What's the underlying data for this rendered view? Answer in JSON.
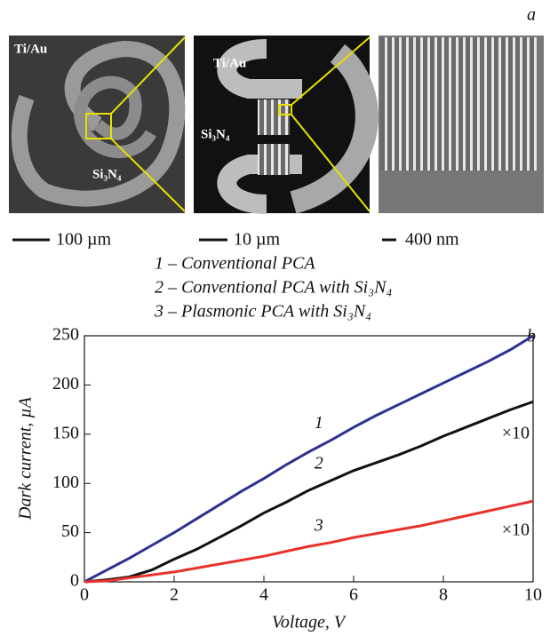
{
  "figure": {
    "panel_a": "a",
    "panel_b": "b",
    "images": [
      {
        "labels": [
          "Ti/Au",
          "Si₃N₄"
        ],
        "scale": "100 µm"
      },
      {
        "labels": [
          "Ti/Au",
          "Si₃N₄"
        ],
        "scale": "10 µm"
      },
      {
        "scale": "400 nm"
      }
    ]
  },
  "chart_data": {
    "type": "line",
    "x_label": "Voltage, V",
    "y_label": "Dark current, µA",
    "x": [
      0,
      0.5,
      1,
      1.5,
      2,
      2.5,
      3,
      3.5,
      4,
      4.5,
      5,
      5.5,
      6,
      6.5,
      7,
      7.5,
      8,
      8.5,
      9,
      9.5,
      10
    ],
    "series": [
      {
        "name": "1 – Conventional PCA",
        "label": "1",
        "color": "#2e3192",
        "values": [
          0,
          12,
          24,
          37,
          50,
          64,
          78,
          92,
          105,
          119,
          132,
          144,
          157,
          169,
          180,
          191,
          202,
          213,
          224,
          236,
          250
        ]
      },
      {
        "name": "2 – Conventional PCA with Si₃N₄",
        "label": "2",
        "color": "#111111",
        "values": [
          0,
          2,
          5,
          12,
          23,
          33,
          45,
          57,
          70,
          81,
          93,
          103,
          113,
          121,
          129,
          138,
          148,
          157,
          166,
          175,
          183
        ]
      },
      {
        "name": "3 – Plasmonic PCA with Si₃N₄",
        "label": "3",
        "color": "#e8322b",
        "values": [
          0,
          1,
          4,
          7,
          10,
          14,
          18,
          22,
          26,
          31,
          36,
          40,
          45,
          49,
          53,
          57,
          62,
          67,
          72,
          77,
          82
        ]
      }
    ],
    "annotations": [
      "×10",
      "×10"
    ],
    "xlim": [
      0,
      10
    ],
    "xticks": [
      0,
      2,
      4,
      6,
      8,
      10
    ],
    "ylim": [
      0,
      250
    ],
    "yticks": [
      0,
      50,
      100,
      150,
      200,
      250
    ]
  }
}
